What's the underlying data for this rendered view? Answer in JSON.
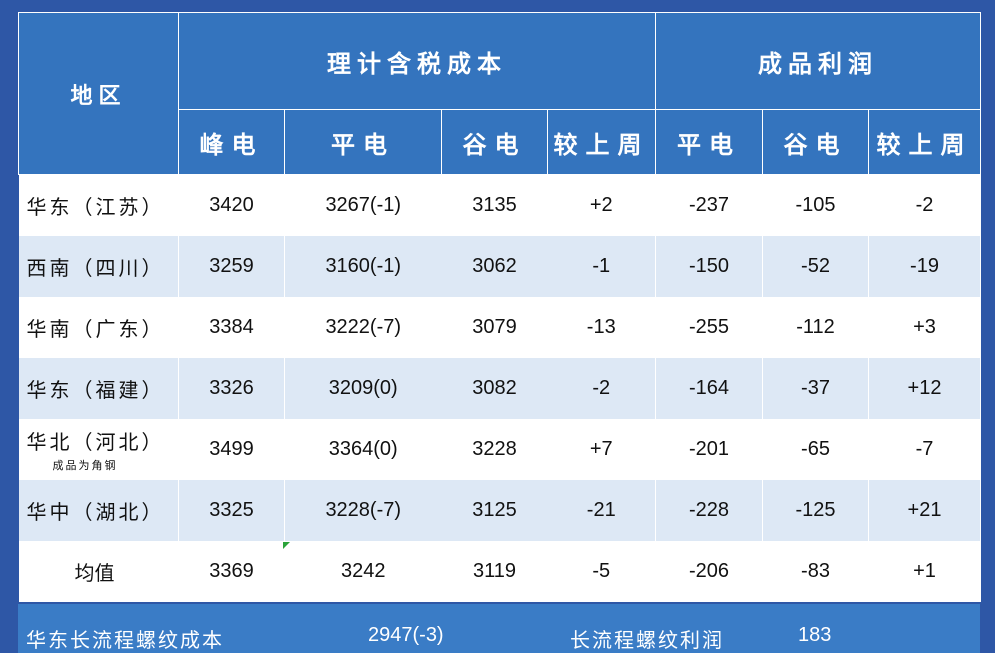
{
  "header": {
    "region": "地区",
    "group_cost": "理计含税成本",
    "group_profit": "成品利润",
    "cost_cols": [
      "峰电",
      "平电",
      "谷电",
      "较上周"
    ],
    "profit_cols": [
      "平电",
      "谷电",
      "较上周"
    ]
  },
  "rows": [
    {
      "region": "华东（江苏）",
      "note": "",
      "peak": "3420",
      "flat": "3267(-1)",
      "valley": "3135",
      "cost_wow": "+2",
      "p_flat": "-237",
      "p_valley": "-105",
      "p_wow": "-2"
    },
    {
      "region": "西南（四川）",
      "note": "",
      "peak": "3259",
      "flat": "3160(-1)",
      "valley": "3062",
      "cost_wow": "-1",
      "p_flat": "-150",
      "p_valley": "-52",
      "p_wow": "-19"
    },
    {
      "region": "华南（广东）",
      "note": "",
      "peak": "3384",
      "flat": "3222(-7)",
      "valley": "3079",
      "cost_wow": "-13",
      "p_flat": "-255",
      "p_valley": "-112",
      "p_wow": "+3"
    },
    {
      "region": "华东（福建）",
      "note": "",
      "peak": "3326",
      "flat": "3209(0)",
      "valley": "3082",
      "cost_wow": "-2",
      "p_flat": "-164",
      "p_valley": "-37",
      "p_wow": "+12"
    },
    {
      "region": "华北（河北）",
      "note": "成品为角钢",
      "peak": "3499",
      "flat": "3364(0)",
      "valley": "3228",
      "cost_wow": "+7",
      "p_flat": "-201",
      "p_valley": "-65",
      "p_wow": "-7"
    },
    {
      "region": "华中（湖北）",
      "note": "",
      "peak": "3325",
      "flat": "3228(-7)",
      "valley": "3125",
      "cost_wow": "-21",
      "p_flat": "-228",
      "p_valley": "-125",
      "p_wow": "+21"
    }
  ],
  "average": {
    "label": "均值",
    "peak": "3369",
    "flat": "3242",
    "valley": "3119",
    "cost_wow": "-5",
    "p_flat": "-206",
    "p_valley": "-83",
    "p_wow": "+1"
  },
  "footer": {
    "long_process_cost_label": "华东长流程螺纹成本",
    "long_process_cost_value": "2947(-3)",
    "long_process_profit_label": "长流程螺纹利润",
    "long_process_profit_value": "183"
  },
  "colors": {
    "header_bg": "#3474be",
    "page_bg": "#2e57a6",
    "row_alt": "#dde8f5",
    "positive": "#e32222",
    "negative": "#18a63b"
  }
}
